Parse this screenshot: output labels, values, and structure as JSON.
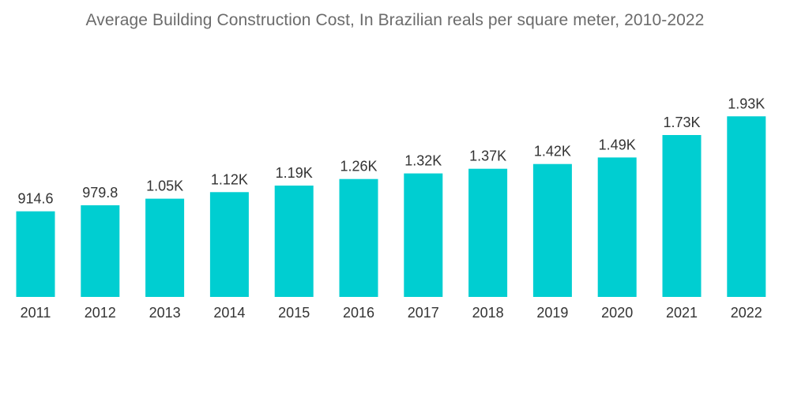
{
  "chart_data": {
    "type": "bar",
    "title": "Average Building Construction Cost, In Brazilian reals per square meter, 2010-2022",
    "xlabel": "",
    "ylabel": "",
    "categories": [
      "2011",
      "2012",
      "2013",
      "2014",
      "2015",
      "2016",
      "2017",
      "2018",
      "2019",
      "2020",
      "2021",
      "2022"
    ],
    "values": [
      914.6,
      979.8,
      1050,
      1120,
      1190,
      1260,
      1320,
      1370,
      1420,
      1490,
      1730,
      1930
    ],
    "data_labels": [
      "914.6",
      "979.8",
      "1.05K",
      "1.12K",
      "1.19K",
      "1.26K",
      "1.32K",
      "1.37K",
      "1.42K",
      "1.49K",
      "1.73K",
      "1.93K"
    ],
    "ylim": [
      0,
      2000
    ],
    "grid": false,
    "legend": "none",
    "colors": {
      "bar": "#00CED1",
      "title": "#6b6b6b",
      "labels": "#333333"
    }
  }
}
